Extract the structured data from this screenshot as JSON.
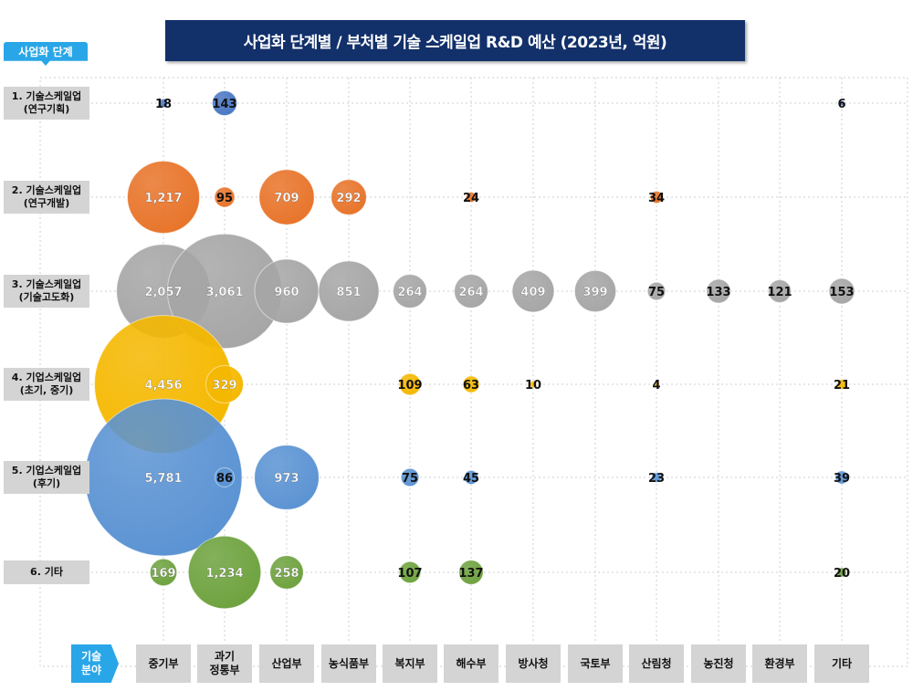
{
  "title": "사업화 단계별 / 부처별 기술 스케일업 R&D 예산 (2023년, 억원)",
  "stage_header": "사업화 단계",
  "tech_header": "기술\n분야",
  "colors": {
    "title_bg": "#12306a",
    "header_accent": "#29a6e8",
    "label_bg": "#d4d4d4",
    "row_colors": [
      "#4a78c4",
      "#e8742a",
      "#a6a6a6",
      "#f5b800",
      "#5b93d3",
      "#6ea23e"
    ]
  },
  "chart_data": {
    "type": "bubble",
    "x_categories": [
      "중기부",
      "과기\n정통부",
      "산업부",
      "농식품부",
      "복지부",
      "해수부",
      "방사청",
      "국토부",
      "산림청",
      "농진청",
      "환경부",
      "기타"
    ],
    "y_categories": [
      "1. 기술스케일업\n(연구기획)",
      "2. 기술스케일업\n(연구개발)",
      "3. 기술스케일업\n(기술고도화)",
      "4. 기업스케일업\n(초기, 중기)",
      "5. 기업스케일업\n(후기)",
      "6. 기타"
    ],
    "rows": [
      [
        18,
        143,
        null,
        null,
        null,
        null,
        null,
        null,
        null,
        null,
        null,
        6
      ],
      [
        1217,
        95,
        709,
        292,
        null,
        24,
        null,
        null,
        34,
        null,
        null,
        null
      ],
      [
        2057,
        3061,
        960,
        851,
        264,
        264,
        409,
        399,
        75,
        133,
        121,
        153
      ],
      [
        4456,
        329,
        null,
        null,
        109,
        63,
        10,
        null,
        4,
        null,
        null,
        21
      ],
      [
        5781,
        86,
        973,
        null,
        75,
        45,
        null,
        null,
        23,
        null,
        null,
        39
      ],
      [
        169,
        1234,
        258,
        null,
        107,
        137,
        null,
        null,
        null,
        null,
        null,
        20
      ]
    ],
    "labels": [
      [
        "18",
        "143",
        "",
        "",
        "",
        "",
        "",
        "",
        "",
        "",
        "",
        "6"
      ],
      [
        "1,217",
        "95",
        "709",
        "292",
        "",
        "24",
        "",
        "",
        "34",
        "",
        "",
        ""
      ],
      [
        "2,057",
        "3,061",
        "960",
        "851",
        "264",
        "264",
        "409",
        "399",
        "75",
        "133",
        "121",
        "153"
      ],
      [
        "4,456",
        "329",
        "",
        "",
        "109",
        "63",
        "10",
        "",
        "4",
        "",
        "",
        "21"
      ],
      [
        "5,781",
        "86",
        "973",
        "",
        "75",
        "45",
        "",
        "",
        "23",
        "",
        "",
        "39"
      ],
      [
        "169",
        "1,234",
        "258",
        "",
        "107",
        "137",
        "",
        "",
        "",
        "",
        "",
        "20"
      ]
    ],
    "grid": true
  }
}
